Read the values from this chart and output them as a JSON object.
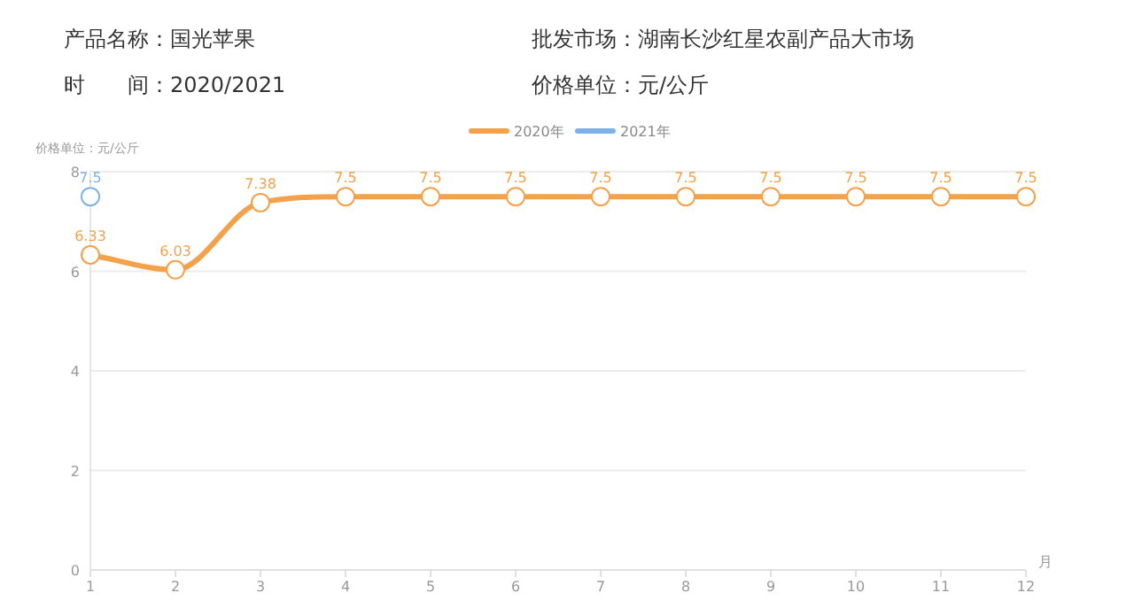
{
  "chart_data": {
    "type": "line",
    "annotations": [
      "产品名称：国光苹果",
      "时　　间：2020/2021",
      "批发市场：湖南长沙红星农副产品大市场",
      "价格单位：元/公斤"
    ],
    "ylabel": "价格单位：元/公斤",
    "xlabel": "月",
    "x": [
      1,
      2,
      3,
      4,
      5,
      6,
      7,
      8,
      9,
      10,
      11,
      12
    ],
    "series": [
      {
        "name": "2020年",
        "color": "#f3a14a",
        "values": [
          6.33,
          6.03,
          7.38,
          7.5,
          7.5,
          7.5,
          7.5,
          7.5,
          7.5,
          7.5,
          7.5,
          7.5
        ]
      },
      {
        "name": "2021年",
        "color": "#7eb2e6",
        "values": [
          7.5,
          null,
          null,
          null,
          null,
          null,
          null,
          null,
          null,
          null,
          null,
          null
        ]
      }
    ],
    "xlim": [
      1,
      12
    ],
    "xticks": [
      1,
      2,
      3,
      4,
      5,
      6,
      7,
      8,
      9,
      10,
      11,
      12
    ],
    "ylim": [
      0,
      8
    ],
    "yticks": [
      0,
      2,
      4,
      6,
      8
    ],
    "grid": "y",
    "legend": "top",
    "marker": "circle",
    "line_style": "solid",
    "data_labels": true
  }
}
